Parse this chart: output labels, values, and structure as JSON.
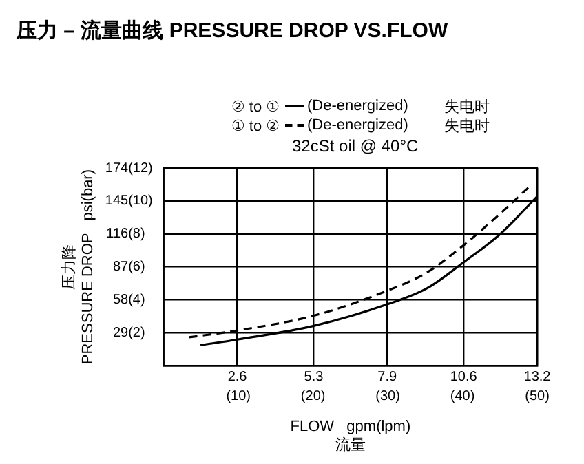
{
  "chart_data": {
    "type": "line",
    "title": "压力 – 流量曲线 PRESSURE DROP VS.FLOW",
    "xlabel": "FLOW   gpm(lpm)\n流量",
    "ylabel": "压力降\nPRESSURE DROP   psi(bar)",
    "xlim": [
      0,
      13.2
    ],
    "xticks": [
      2.6,
      5.3,
      7.9,
      10.6,
      13.2
    ],
    "x2lim": [
      0,
      50
    ],
    "x2ticks": [
      {
        "value": 10,
        "label": "(10)"
      },
      {
        "value": 20,
        "label": "(20)"
      },
      {
        "value": 30,
        "label": "(30)"
      },
      {
        "value": 40,
        "label": "(40)"
      },
      {
        "value": 50,
        "label": "(50)"
      }
    ],
    "ylim": [
      0,
      174
    ],
    "yticks": [
      29,
      58,
      87,
      116,
      145,
      174
    ],
    "y2lim": [
      0,
      12
    ],
    "y2ticks": [
      {
        "value": 2,
        "label": "(2)"
      },
      {
        "value": 4,
        "label": "(4)"
      },
      {
        "value": 6,
        "label": "(6)"
      },
      {
        "value": 8,
        "label": "(8)"
      },
      {
        "value": 10,
        "label": "(10)"
      },
      {
        "value": 12,
        "label": "(12)"
      }
    ],
    "grid": true,
    "legend": "top",
    "marker": "none",
    "series": [
      {
        "name": "② to ①",
        "color": "#000000",
        "line_style": "solid",
        "x": [
          1.3,
          2.6,
          5.3,
          7.9,
          9.3,
          10.6,
          11.9,
          13.2
        ],
        "values": [
          18,
          23,
          35,
          54,
          68,
          91,
          116,
          149
        ]
      },
      {
        "name": "① to ②",
        "color": "#000000",
        "line_style": "dashed",
        "x": [
          0.9,
          2.6,
          5.3,
          7.9,
          9.3,
          10.6,
          11.9,
          12.9
        ],
        "values": [
          25,
          31,
          44,
          66,
          82,
          106,
          134,
          157
        ]
      }
    ],
    "annotations": [
      "(De-energized)",
      "失电时",
      "(De-energized)",
      "失电时",
      "32cSt oil @ 40°C"
    ]
  }
}
